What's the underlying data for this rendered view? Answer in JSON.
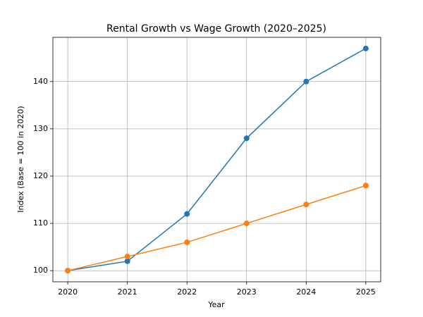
{
  "chart_data": {
    "type": "line",
    "title": "Rental Growth vs Wage Growth (2020–2025)",
    "x_label": "Year",
    "y_label": "Index (Base = 100 in 2020)",
    "x": [
      2020,
      2021,
      2022,
      2023,
      2024,
      2025
    ],
    "series": [
      {
        "color": "#1f77b4",
        "values": [
          100,
          102,
          112,
          128,
          140,
          147
        ]
      },
      {
        "color": "#ff7f0e",
        "values": [
          100,
          103,
          106,
          110,
          114,
          118
        ]
      }
    ],
    "xlim": [
      2019.75,
      2025.25
    ],
    "xticks": [
      2020,
      2021,
      2022,
      2023,
      2024,
      2025
    ],
    "ylim": [
      97.65,
      149.35
    ],
    "yticks": [
      100,
      110,
      120,
      130,
      140
    ],
    "grid": true
  }
}
